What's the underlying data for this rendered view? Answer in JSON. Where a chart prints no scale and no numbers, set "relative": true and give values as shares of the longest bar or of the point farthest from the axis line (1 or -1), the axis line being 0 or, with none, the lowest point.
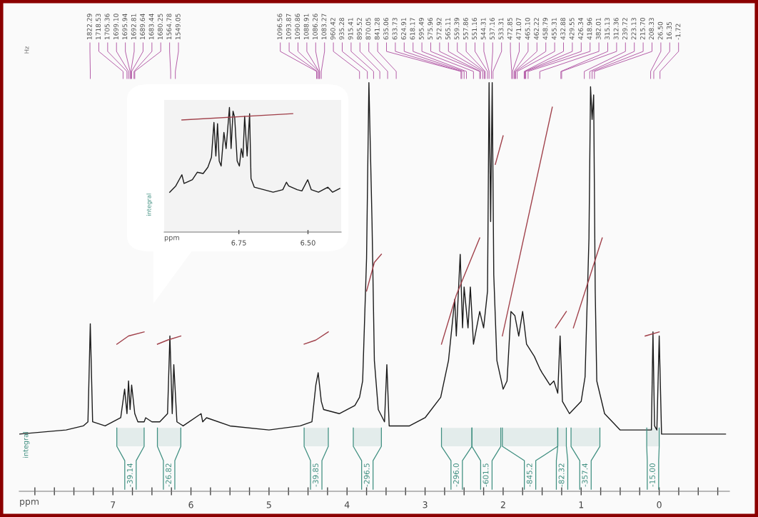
{
  "chart_data": [
    {
      "type": "line",
      "relative": true,
      "xlabel": "ppm",
      "xlim": [
        8.2,
        -0.9
      ],
      "xticks": [
        {
          "value": 8.0,
          "label": null
        },
        {
          "value": 7.75,
          "label": null
        },
        {
          "value": 7.5,
          "label": null
        },
        {
          "value": 7.25,
          "label": null
        },
        7,
        {
          "value": 6.75,
          "label": null
        },
        {
          "value": 6.5,
          "label": null
        },
        {
          "value": 6.25,
          "label": null
        },
        6,
        {
          "value": 5.75,
          "label": null
        },
        {
          "value": 5.5,
          "label": null
        },
        {
          "value": 5.25,
          "label": null
        },
        5,
        {
          "value": 4.75,
          "label": null
        },
        {
          "value": 4.5,
          "label": null
        },
        {
          "value": 4.25,
          "label": null
        },
        4,
        {
          "value": 3.75,
          "label": null
        },
        {
          "value": 3.5,
          "label": null
        },
        {
          "value": 3.25,
          "label": null
        },
        3,
        {
          "value": 2.75,
          "label": null
        },
        {
          "value": 2.5,
          "label": null
        },
        {
          "value": 2.25,
          "label": null
        },
        2,
        {
          "value": 1.75,
          "label": null
        },
        {
          "value": 1.5,
          "label": null
        },
        {
          "value": 1.25,
          "label": null
        },
        1,
        {
          "value": 0.75,
          "label": null
        },
        {
          "value": 0.5,
          "label": null
        },
        {
          "value": 0.25,
          "label": null
        },
        0,
        {
          "value": -0.25,
          "label": null
        },
        {
          "value": -0.5,
          "label": null
        },
        {
          "value": -0.75,
          "label": null
        }
      ],
      "grid": false,
      "legend": false,
      "series": [
        {
          "color": "#1a1a1a",
          "x": [
            8.2,
            7.6,
            7.38,
            7.32,
            7.29,
            7.26,
            7.1,
            6.9,
            6.85,
            6.82,
            6.8,
            6.78,
            6.76,
            6.72,
            6.68,
            6.6,
            6.58,
            6.5,
            6.4,
            6.3,
            6.27,
            6.24,
            6.22,
            6.18,
            6.1,
            5.87,
            5.85,
            5.8,
            5.5,
            5.0,
            4.6,
            4.45,
            4.4,
            4.37,
            4.33,
            4.3,
            4.1,
            3.9,
            3.84,
            3.8,
            3.75,
            3.72,
            3.68,
            3.65,
            3.6,
            3.52,
            3.49,
            3.46,
            3.37,
            3.2,
            3.0,
            2.8,
            2.7,
            2.62,
            2.6,
            2.55,
            2.52,
            2.5,
            2.45,
            2.42,
            2.38,
            2.3,
            2.25,
            2.2,
            2.18,
            2.16,
            2.14,
            2.12,
            2.08,
            2.0,
            1.95,
            1.9,
            1.85,
            1.8,
            1.75,
            1.7,
            1.6,
            1.53,
            1.5,
            1.4,
            1.35,
            1.3,
            1.27,
            1.24,
            1.15,
            1.1,
            1.0,
            0.95,
            0.9,
            0.88,
            0.86,
            0.84,
            0.82,
            0.8,
            0.7,
            0.5,
            0.2,
            0.1,
            0.08,
            0.06,
            0.03,
            0.0,
            -0.03,
            -0.5,
            -0.85
          ],
          "values": [
            0.14,
            0.15,
            0.16,
            0.17,
            0.41,
            0.17,
            0.16,
            0.18,
            0.25,
            0.19,
            0.27,
            0.2,
            0.26,
            0.19,
            0.17,
            0.17,
            0.18,
            0.17,
            0.17,
            0.19,
            0.38,
            0.19,
            0.31,
            0.17,
            0.16,
            0.19,
            0.17,
            0.18,
            0.16,
            0.15,
            0.16,
            0.17,
            0.26,
            0.29,
            0.22,
            0.2,
            0.19,
            0.21,
            0.23,
            0.27,
            0.57,
            1.0,
            0.66,
            0.32,
            0.2,
            0.17,
            0.31,
            0.16,
            0.16,
            0.16,
            0.18,
            0.23,
            0.32,
            0.47,
            0.38,
            0.58,
            0.4,
            0.5,
            0.4,
            0.5,
            0.36,
            0.44,
            0.4,
            0.49,
            1.0,
            0.66,
            1.0,
            0.53,
            0.32,
            0.25,
            0.27,
            0.44,
            0.43,
            0.38,
            0.44,
            0.36,
            0.33,
            0.3,
            0.29,
            0.26,
            0.27,
            0.24,
            0.38,
            0.22,
            0.19,
            0.2,
            0.22,
            0.28,
            0.62,
            0.99,
            0.91,
            0.97,
            0.49,
            0.27,
            0.19,
            0.15,
            0.15,
            0.15,
            0.39,
            0.16,
            0.15,
            0.38,
            0.14,
            0.14,
            0.14
          ]
        },
        {
          "color": "#a0404a",
          "x": [
            6.95,
            6.8,
            6.6
          ],
          "values": [
            0.36,
            0.38,
            0.39
          ]
        },
        {
          "color": "#a0404a",
          "x": [
            6.43,
            6.3,
            6.13
          ],
          "values": [
            0.36,
            0.37,
            0.38
          ]
        },
        {
          "color": "#a0404a",
          "x": [
            4.55,
            4.4,
            4.24
          ],
          "values": [
            0.36,
            0.37,
            0.39
          ]
        },
        {
          "color": "#a0404a",
          "x": [
            3.75,
            3.65,
            3.56
          ],
          "values": [
            0.49,
            0.56,
            0.58
          ]
        },
        {
          "color": "#a0404a",
          "x": [
            2.79,
            2.6,
            2.3
          ],
          "values": [
            0.36,
            0.48,
            0.62
          ]
        },
        {
          "color": "#a0404a",
          "x": [
            2.1,
            2.0
          ],
          "values": [
            0.8,
            0.87
          ]
        },
        {
          "color": "#a0404a",
          "x": [
            2.01,
            1.37
          ],
          "values": [
            0.38,
            0.94
          ]
        },
        {
          "color": "#a0404a",
          "x": [
            1.33,
            1.19
          ],
          "values": [
            0.4,
            0.44
          ]
        },
        {
          "color": "#a0404a",
          "x": [
            1.1,
            0.73
          ],
          "values": [
            0.4,
            0.62
          ]
        },
        {
          "color": "#a0404a",
          "x": [
            0.18,
            0.0
          ],
          "values": [
            0.38,
            0.39
          ]
        }
      ],
      "bands": [
        {
          "axis": "x",
          "from": 6.95,
          "to": 6.6,
          "label": "-39.14",
          "color": "#3f8f80"
        },
        {
          "axis": "x",
          "from": 6.43,
          "to": 6.13,
          "label": "-26.82",
          "color": "#3f8f80"
        },
        {
          "axis": "x",
          "from": 4.55,
          "to": 4.24,
          "label": "-39.85",
          "color": "#3f8f80"
        },
        {
          "axis": "x",
          "from": 3.92,
          "to": 3.56,
          "label": "-296.5",
          "color": "#3f8f80"
        },
        {
          "axis": "x",
          "from": 2.79,
          "to": 2.4,
          "label": "-296.0",
          "color": "#3f8f80"
        },
        {
          "axis": "x",
          "from": 2.4,
          "to": 2.03,
          "label": "-601.5",
          "color": "#3f8f80"
        },
        {
          "axis": "x",
          "from": 2.01,
          "to": 1.3,
          "label": "-845.2",
          "color": "#3f8f80"
        },
        {
          "axis": "x",
          "from": 1.3,
          "to": 1.19,
          "label": "-82.32",
          "color": "#3f8f80"
        },
        {
          "axis": "x",
          "from": 1.13,
          "to": 0.76,
          "label": "-357.4",
          "color": "#3f8f80"
        },
        {
          "axis": "x",
          "from": 0.16,
          "to": 0.0,
          "label": "-15.00",
          "color": "#3f8f80"
        }
      ],
      "annotations": [
        "Hz",
        "integral",
        {
          "text": "1822.29",
          "x": 7.29
        },
        {
          "text": "1718.53",
          "x": 6.87
        },
        {
          "text": "1705.36",
          "x": 6.82
        },
        {
          "text": "1699.10",
          "x": 6.8
        },
        {
          "text": "1695.94",
          "x": 6.78
        },
        {
          "text": "1692.81",
          "x": 6.77
        },
        {
          "text": "1689.64",
          "x": 6.76
        },
        {
          "text": "1683.44",
          "x": 6.73
        },
        {
          "text": "1680.25",
          "x": 6.72
        },
        {
          "text": "1564.78",
          "x": 6.26
        },
        {
          "text": "1549.05",
          "x": 6.2
        },
        {
          "text": "1096.56",
          "x": 4.39
        },
        {
          "text": "1093.87",
          "x": 4.38
        },
        {
          "text": "1090.86",
          "x": 4.36
        },
        {
          "text": "1088.91",
          "x": 4.36
        },
        {
          "text": "1086.26",
          "x": 4.35
        },
        {
          "text": "1083.27",
          "x": 4.33
        },
        {
          "text": "960.42",
          "x": 3.84
        },
        {
          "text": "935.28",
          "x": 3.74
        },
        {
          "text": "915.41",
          "x": 3.66
        },
        {
          "text": "895.52",
          "x": 3.58
        },
        {
          "text": "870.05",
          "x": 3.48
        },
        {
          "text": "841.28",
          "x": 3.37
        },
        {
          "text": "635.06",
          "x": 2.54
        },
        {
          "text": "633.73",
          "x": 2.53
        },
        {
          "text": "624.91",
          "x": 2.5
        },
        {
          "text": "618.17",
          "x": 2.47
        },
        {
          "text": "595.49",
          "x": 2.38
        },
        {
          "text": "575.96",
          "x": 2.3
        },
        {
          "text": "572.92",
          "x": 2.29
        },
        {
          "text": "565.11",
          "x": 2.26
        },
        {
          "text": "559.39",
          "x": 2.24
        },
        {
          "text": "557.86",
          "x": 2.23
        },
        {
          "text": "551.16",
          "x": 2.2
        },
        {
          "text": "544.31",
          "x": 2.18
        },
        {
          "text": "537.16",
          "x": 2.15
        },
        {
          "text": "533.31",
          "x": 2.13
        },
        {
          "text": "472.85",
          "x": 1.89
        },
        {
          "text": "471.07",
          "x": 1.88
        },
        {
          "text": "465.10",
          "x": 1.86
        },
        {
          "text": "462.22",
          "x": 1.85
        },
        {
          "text": "458.79",
          "x": 1.84
        },
        {
          "text": "455.31",
          "x": 1.82
        },
        {
          "text": "432.88",
          "x": 1.73
        },
        {
          "text": "429.55",
          "x": 1.72
        },
        {
          "text": "426.34",
          "x": 1.71
        },
        {
          "text": "418.96",
          "x": 1.68
        },
        {
          "text": "382.01",
          "x": 1.53
        },
        {
          "text": "315.13",
          "x": 1.26
        },
        {
          "text": "312.36",
          "x": 1.25
        },
        {
          "text": "239.72",
          "x": 0.96
        },
        {
          "text": "223.13",
          "x": 0.89
        },
        {
          "text": "215.70",
          "x": 0.86
        },
        {
          "text": "208.33",
          "x": 0.83
        },
        {
          "text": "26.50",
          "x": 0.11
        },
        {
          "text": "16.35",
          "x": 0.07
        },
        {
          "text": "-1.72",
          "x": -0.01
        }
      ]
    },
    {
      "type": "line",
      "relative": true,
      "xlabel": "ppm",
      "xlim": [
        7.02,
        6.38
      ],
      "xticks": [
        {
          "value": 6.75,
          "label": "6.75"
        },
        {
          "value": 6.5,
          "label": "6.50"
        }
      ],
      "series": [
        {
          "color": "#1a1a1a",
          "x": [
            7.0,
            6.978,
            6.956,
            6.948,
            6.918,
            6.9,
            6.879,
            6.862,
            6.849,
            6.84,
            6.833,
            6.827,
            6.821,
            6.814,
            6.804,
            6.796,
            6.784,
            6.778,
            6.771,
            6.765,
            6.756,
            6.748,
            6.741,
            6.735,
            6.729,
            6.72,
            6.711,
            6.706,
            6.694,
            6.66,
            6.626,
            6.591,
            6.578,
            6.57,
            6.539,
            6.522,
            6.501,
            6.488,
            6.462,
            6.428,
            6.411,
            6.385
          ],
          "values": [
            0.32,
            0.37,
            0.46,
            0.39,
            0.42,
            0.48,
            0.47,
            0.52,
            0.6,
            0.88,
            0.61,
            0.87,
            0.57,
            0.53,
            0.8,
            0.67,
            1.0,
            0.67,
            0.97,
            0.92,
            0.57,
            0.53,
            0.67,
            0.6,
            0.93,
            0.61,
            0.95,
            0.43,
            0.36,
            0.34,
            0.32,
            0.34,
            0.4,
            0.37,
            0.34,
            0.33,
            0.42,
            0.34,
            0.32,
            0.36,
            0.32,
            0.35
          ]
        },
        {
          "color": "#a0404a",
          "x": [
            6.956,
            6.555
          ],
          "values": [
            0.9,
            0.95
          ]
        }
      ],
      "annotations": [
        "integral"
      ]
    }
  ]
}
